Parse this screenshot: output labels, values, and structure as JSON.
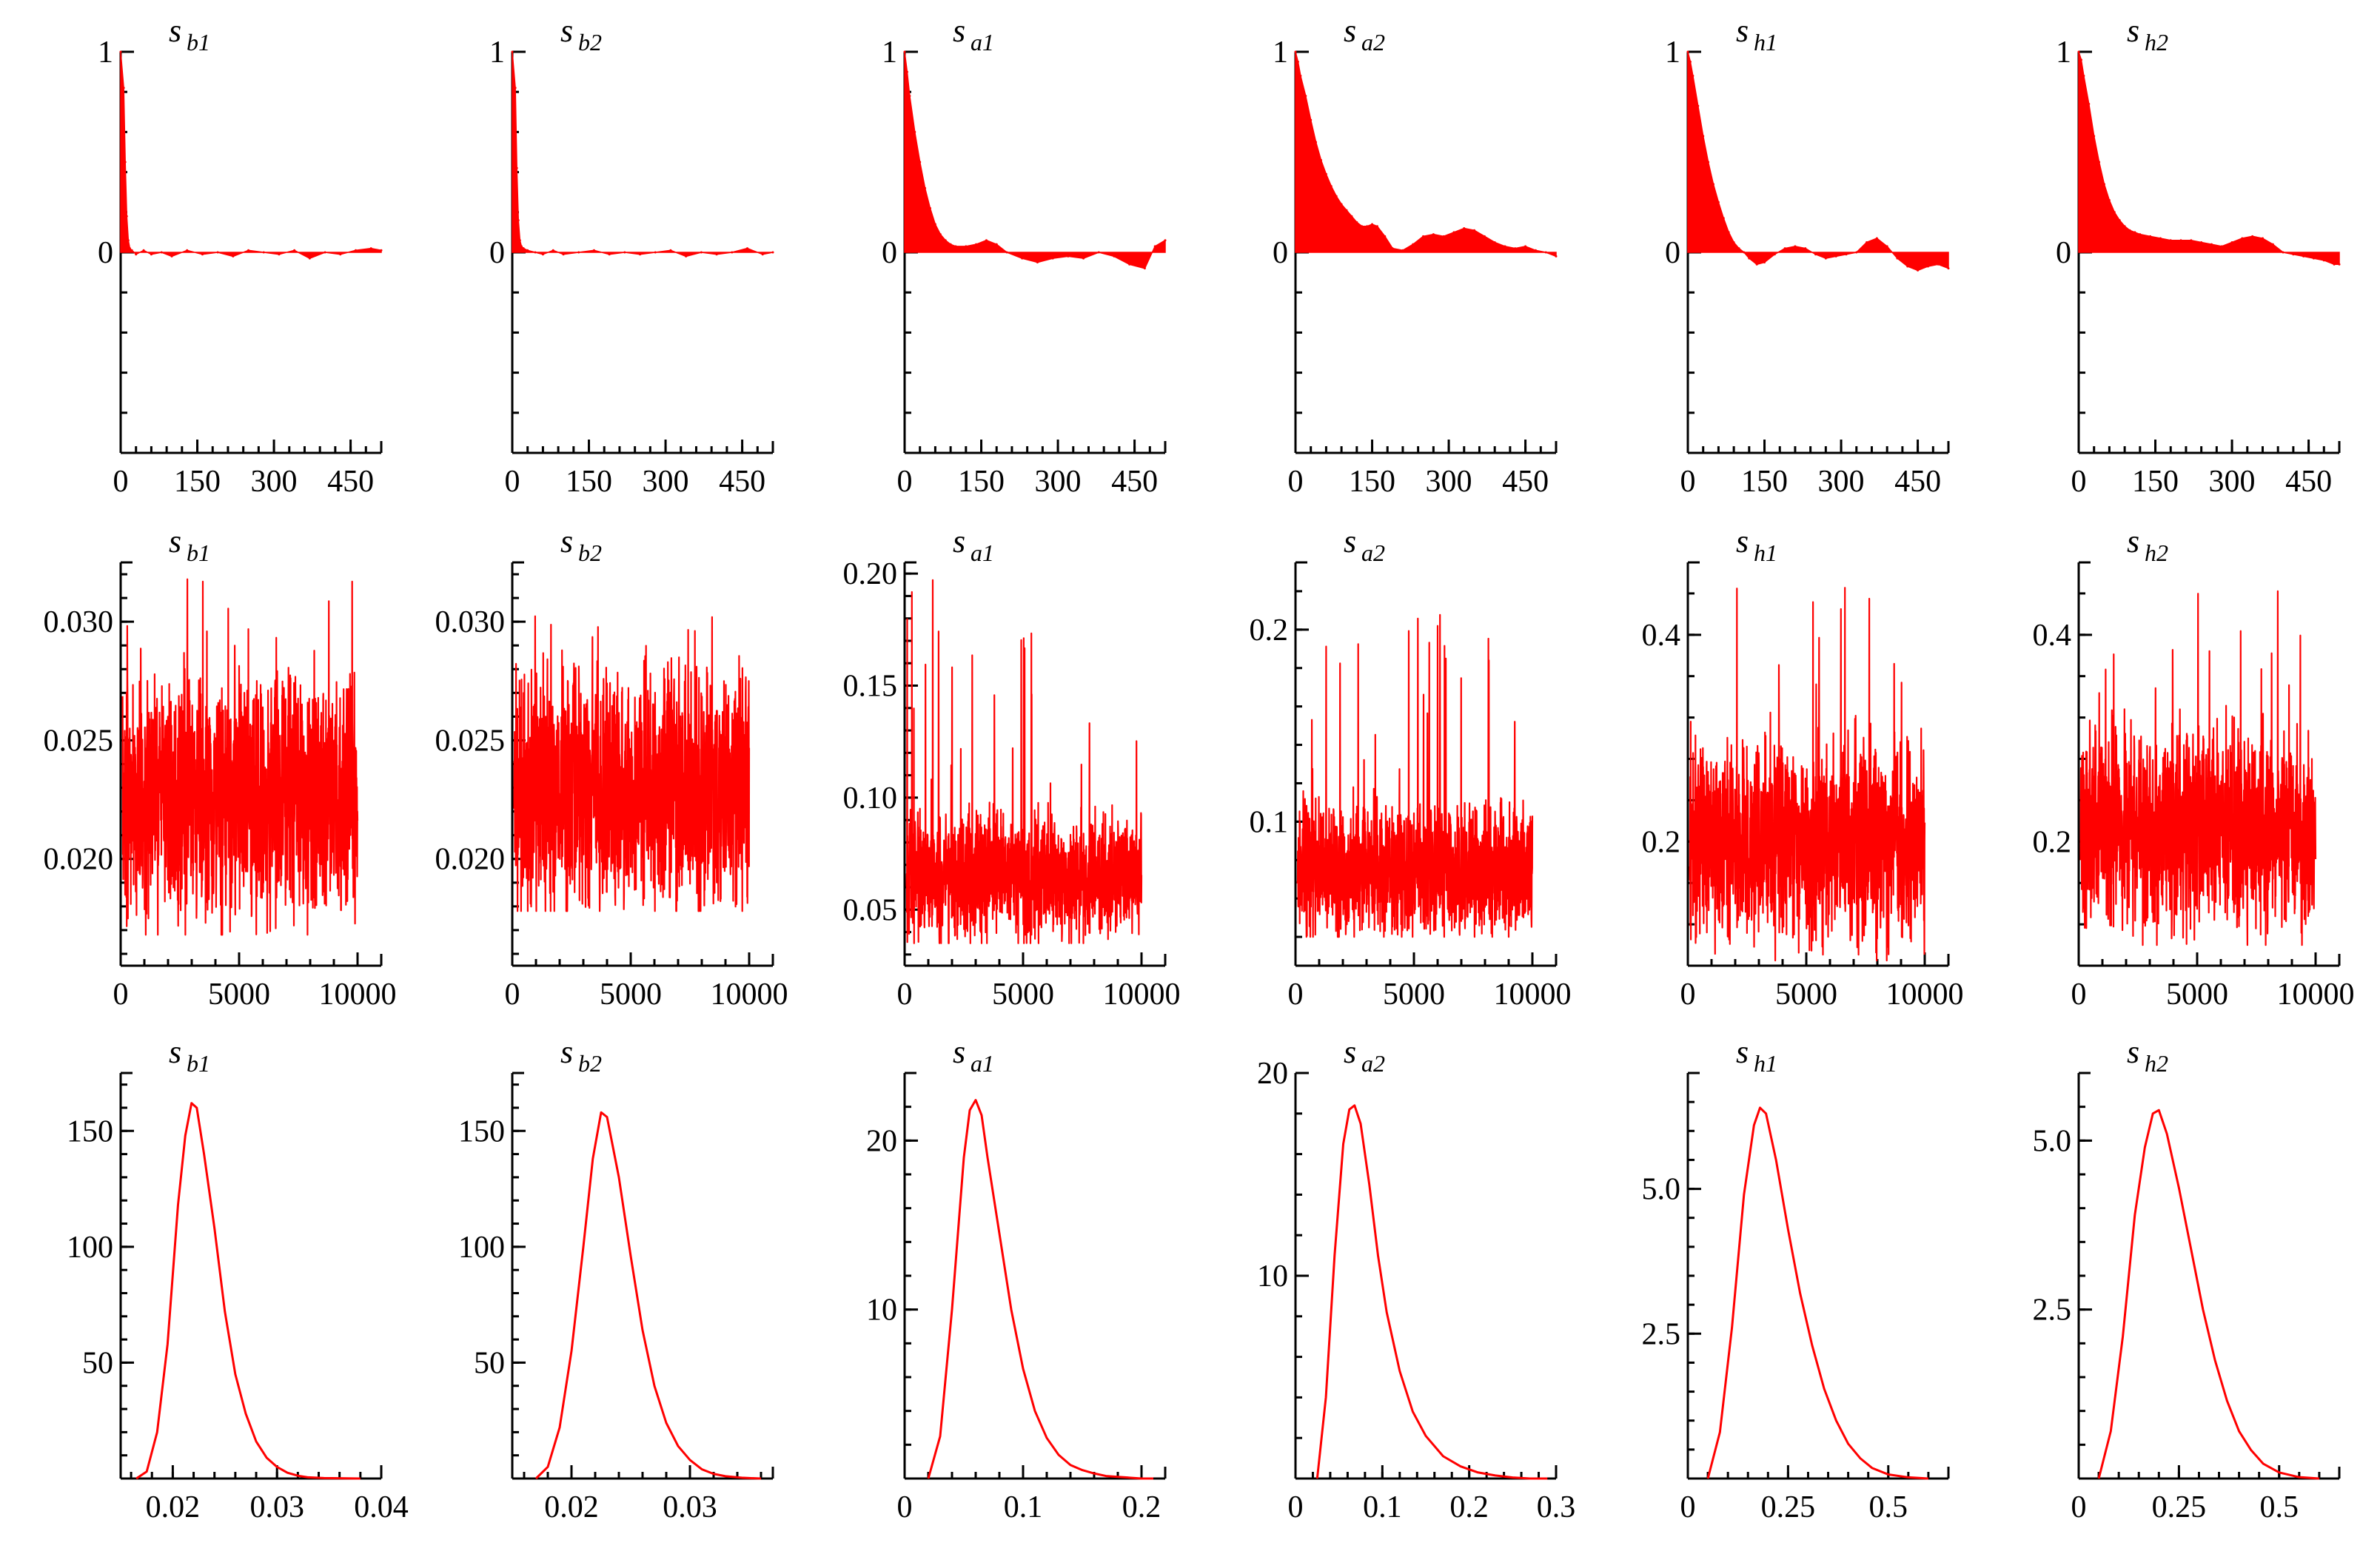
{
  "colors": {
    "series": "#ff0000",
    "axis": "#000000",
    "background": "#ffffff"
  },
  "chart_data": [
    {
      "type": "area",
      "row_kind": "autocorrelation",
      "title": "s",
      "subscript": "b1",
      "xlim": [
        0,
        510
      ],
      "ylim": [
        -1,
        1
      ],
      "xticks": [
        "0",
        "150",
        "300",
        "450"
      ],
      "yticks": [
        "0",
        "1"
      ],
      "x": [
        0,
        6,
        9,
        12,
        15,
        18,
        22,
        30,
        45,
        60,
        80,
        100,
        130,
        160,
        190,
        220,
        250,
        280,
        310,
        340,
        370,
        400,
        430,
        460,
        490,
        510
      ],
      "y": [
        1,
        0.82,
        0.45,
        0.18,
        0.06,
        0.02,
        0.01,
        -0.01,
        0.01,
        -0.01,
        0.0,
        -0.02,
        0.01,
        -0.01,
        0.0,
        -0.02,
        0.01,
        0.0,
        -0.01,
        0.01,
        -0.03,
        0.0,
        -0.01,
        0.01,
        0.02,
        0.01
      ]
    },
    {
      "type": "area",
      "row_kind": "autocorrelation",
      "title": "s",
      "subscript": "b2",
      "xlim": [
        0,
        510
      ],
      "ylim": [
        -1,
        1
      ],
      "xticks": [
        "0",
        "150",
        "300",
        "450"
      ],
      "yticks": [
        "0",
        "1"
      ],
      "x": [
        0,
        6,
        9,
        12,
        15,
        18,
        22,
        30,
        45,
        60,
        80,
        100,
        130,
        160,
        190,
        220,
        250,
        280,
        310,
        340,
        370,
        400,
        430,
        460,
        490,
        510
      ],
      "y": [
        1,
        0.82,
        0.42,
        0.16,
        0.06,
        0.03,
        0.02,
        0.01,
        0.0,
        -0.01,
        0.01,
        -0.01,
        0.0,
        0.01,
        -0.01,
        0.0,
        -0.01,
        0.0,
        0.01,
        -0.02,
        0.0,
        -0.01,
        0.0,
        0.02,
        -0.01,
        0.0
      ]
    },
    {
      "type": "area",
      "row_kind": "autocorrelation",
      "title": "s",
      "subscript": "a1",
      "xlim": [
        0,
        510
      ],
      "ylim": [
        -1,
        1
      ],
      "xticks": [
        "0",
        "150",
        "300",
        "450"
      ],
      "yticks": [
        "0",
        "1"
      ],
      "x": [
        0,
        5,
        10,
        20,
        30,
        40,
        50,
        60,
        70,
        80,
        90,
        100,
        120,
        140,
        160,
        180,
        200,
        230,
        260,
        290,
        320,
        350,
        380,
        410,
        440,
        470,
        490,
        510
      ],
      "y": [
        1,
        0.9,
        0.78,
        0.6,
        0.45,
        0.32,
        0.22,
        0.14,
        0.09,
        0.06,
        0.04,
        0.03,
        0.03,
        0.04,
        0.06,
        0.04,
        0.0,
        -0.03,
        -0.05,
        -0.03,
        -0.02,
        -0.03,
        0.0,
        -0.02,
        -0.06,
        -0.08,
        0.03,
        0.06
      ]
    },
    {
      "type": "area",
      "row_kind": "autocorrelation",
      "title": "s",
      "subscript": "a2",
      "xlim": [
        0,
        510
      ],
      "ylim": [
        -1,
        1
      ],
      "xticks": [
        "0",
        "150",
        "300",
        "450"
      ],
      "yticks": [
        "0",
        "1"
      ],
      "x": [
        0,
        5,
        10,
        20,
        30,
        40,
        50,
        60,
        70,
        80,
        90,
        100,
        110,
        120,
        130,
        140,
        150,
        160,
        175,
        190,
        210,
        230,
        250,
        270,
        290,
        310,
        330,
        350,
        370,
        390,
        410,
        430,
        450,
        470,
        490,
        510
      ],
      "y": [
        1,
        0.95,
        0.88,
        0.78,
        0.66,
        0.55,
        0.46,
        0.39,
        0.33,
        0.28,
        0.24,
        0.21,
        0.18,
        0.15,
        0.13,
        0.13,
        0.14,
        0.13,
        0.08,
        0.02,
        0.01,
        0.04,
        0.08,
        0.09,
        0.08,
        0.1,
        0.12,
        0.11,
        0.08,
        0.05,
        0.03,
        0.02,
        0.03,
        0.01,
        0.0,
        -0.02
      ]
    },
    {
      "type": "area",
      "row_kind": "autocorrelation",
      "title": "s",
      "subscript": "h1",
      "xlim": [
        0,
        510
      ],
      "ylim": [
        -1,
        1
      ],
      "xticks": [
        "0",
        "150",
        "300",
        "450"
      ],
      "yticks": [
        "0",
        "1"
      ],
      "x": [
        0,
        5,
        10,
        20,
        30,
        40,
        50,
        60,
        70,
        80,
        90,
        100,
        110,
        120,
        135,
        150,
        170,
        190,
        210,
        230,
        250,
        270,
        290,
        310,
        330,
        350,
        370,
        390,
        410,
        430,
        450,
        470,
        490,
        510
      ],
      "y": [
        1,
        0.95,
        0.88,
        0.73,
        0.58,
        0.45,
        0.34,
        0.25,
        0.17,
        0.1,
        0.05,
        0.02,
        0.0,
        -0.03,
        -0.06,
        -0.05,
        -0.01,
        0.02,
        0.03,
        0.02,
        -0.01,
        -0.03,
        -0.02,
        -0.01,
        0.0,
        0.05,
        0.07,
        0.03,
        -0.03,
        -0.07,
        -0.09,
        -0.07,
        -0.06,
        -0.08
      ]
    },
    {
      "type": "area",
      "row_kind": "autocorrelation",
      "title": "s",
      "subscript": "h2",
      "xlim": [
        0,
        510
      ],
      "ylim": [
        -1,
        1
      ],
      "xticks": [
        "0",
        "150",
        "300",
        "450"
      ],
      "yticks": [
        "0",
        "1"
      ],
      "x": [
        0,
        5,
        10,
        20,
        30,
        40,
        50,
        60,
        70,
        80,
        90,
        100,
        110,
        120,
        140,
        160,
        180,
        200,
        220,
        240,
        260,
        280,
        300,
        320,
        340,
        360,
        380,
        400,
        420,
        440,
        460,
        480,
        500,
        510
      ],
      "y": [
        1,
        0.96,
        0.88,
        0.74,
        0.58,
        0.45,
        0.34,
        0.26,
        0.2,
        0.16,
        0.13,
        0.11,
        0.1,
        0.09,
        0.08,
        0.07,
        0.06,
        0.06,
        0.06,
        0.05,
        0.04,
        0.03,
        0.05,
        0.07,
        0.08,
        0.07,
        0.04,
        0.0,
        -0.01,
        -0.02,
        -0.03,
        -0.04,
        -0.06,
        -0.06
      ]
    },
    {
      "type": "line",
      "row_kind": "trace",
      "title": "s",
      "subscript": "b1",
      "xlim": [
        0,
        11000
      ],
      "ylim": [
        0.0155,
        0.0325
      ],
      "n_points": 10000,
      "xticks": [
        "0",
        "5000",
        "10000"
      ],
      "yticks": [
        "0.020",
        "0.025",
        "0.030"
      ],
      "center": 0.0225,
      "spread": 0.0024,
      "y_min": 0.0168,
      "y_max": 0.0319
    },
    {
      "type": "line",
      "row_kind": "trace",
      "title": "s",
      "subscript": "b2",
      "xlim": [
        0,
        11000
      ],
      "ylim": [
        0.0155,
        0.0325
      ],
      "n_points": 10000,
      "xticks": [
        "0",
        "5000",
        "10000"
      ],
      "yticks": [
        "0.020",
        "0.025",
        "0.030"
      ],
      "center": 0.0228,
      "spread": 0.0025,
      "y_min": 0.0178,
      "y_max": 0.0305
    },
    {
      "type": "line",
      "row_kind": "trace",
      "title": "s",
      "subscript": "a1",
      "xlim": [
        0,
        11000
      ],
      "ylim": [
        0.025,
        0.205
      ],
      "n_points": 10000,
      "xticks": [
        "0",
        "5000",
        "10000"
      ],
      "yticks": [
        "0.05",
        "0.10",
        "0.15",
        "0.20"
      ],
      "center": 0.065,
      "spread": 0.013,
      "y_min": 0.035,
      "y_max": 0.198
    },
    {
      "type": "line",
      "row_kind": "trace",
      "title": "s",
      "subscript": "a2",
      "xlim": [
        0,
        11000
      ],
      "ylim": [
        0.025,
        0.235
      ],
      "n_points": 10000,
      "xticks": [
        "0",
        "5000",
        "10000"
      ],
      "yticks": [
        "0.1",
        "0.2"
      ],
      "center": 0.075,
      "spread": 0.016,
      "y_min": 0.04,
      "y_max": 0.214
    },
    {
      "type": "line",
      "row_kind": "trace",
      "title": "s",
      "subscript": "h1",
      "xlim": [
        0,
        11000
      ],
      "ylim": [
        0.08,
        0.47
      ],
      "n_points": 10000,
      "xticks": [
        "0",
        "5000",
        "10000"
      ],
      "yticks": [
        "0.2",
        "0.4"
      ],
      "center": 0.2,
      "spread": 0.045,
      "y_min": 0.085,
      "y_max": 0.455
    },
    {
      "type": "line",
      "row_kind": "trace",
      "title": "s",
      "subscript": "h2",
      "xlim": [
        0,
        11000
      ],
      "ylim": [
        0.08,
        0.47
      ],
      "n_points": 10000,
      "xticks": [
        "0",
        "5000",
        "10000"
      ],
      "yticks": [
        "0.2",
        "0.4"
      ],
      "center": 0.21,
      "spread": 0.045,
      "y_min": 0.1,
      "y_max": 0.445
    },
    {
      "type": "line",
      "row_kind": "density",
      "title": "s",
      "subscript": "b1",
      "xlim": [
        0.015,
        0.04
      ],
      "ylim": [
        0,
        175
      ],
      "xticks": [
        "0.02",
        "0.03",
        "0.04"
      ],
      "yticks": [
        "50",
        "100",
        "150"
      ],
      "x": [
        0.0165,
        0.0175,
        0.0185,
        0.0195,
        0.0205,
        0.0212,
        0.0218,
        0.0223,
        0.023,
        0.024,
        0.025,
        0.026,
        0.027,
        0.028,
        0.029,
        0.03,
        0.031,
        0.032,
        0.033,
        0.0345,
        0.036,
        0.038
      ],
      "y": [
        0,
        3,
        20,
        58,
        118,
        148,
        162,
        160,
        140,
        108,
        72,
        45,
        28,
        16,
        9,
        5,
        2.5,
        1.2,
        0.5,
        0.2,
        0.1,
        0
      ]
    },
    {
      "type": "line",
      "row_kind": "density",
      "title": "s",
      "subscript": "b2",
      "xlim": [
        0.015,
        0.037
      ],
      "ylim": [
        0,
        175
      ],
      "xticks": [
        "0.02",
        "0.03"
      ],
      "yticks": [
        "50",
        "100",
        "150"
      ],
      "x": [
        0.017,
        0.018,
        0.019,
        0.02,
        0.021,
        0.0218,
        0.0225,
        0.023,
        0.024,
        0.025,
        0.026,
        0.027,
        0.028,
        0.029,
        0.03,
        0.031,
        0.032,
        0.033,
        0.0345,
        0.036
      ],
      "y": [
        0,
        5,
        22,
        55,
        100,
        138,
        158,
        156,
        130,
        96,
        64,
        40,
        24,
        14,
        8,
        4,
        2,
        1,
        0.3,
        0
      ]
    },
    {
      "type": "line",
      "row_kind": "density",
      "title": "s",
      "subscript": "a1",
      "xlim": [
        0,
        0.22
      ],
      "ylim": [
        0,
        24
      ],
      "xticks": [
        "0",
        "0.1",
        "0.2"
      ],
      "yticks": [
        "10",
        "20"
      ],
      "x": [
        0.02,
        0.03,
        0.04,
        0.05,
        0.055,
        0.06,
        0.065,
        0.07,
        0.08,
        0.09,
        0.1,
        0.11,
        0.12,
        0.13,
        0.14,
        0.15,
        0.16,
        0.17,
        0.18,
        0.2,
        0.21
      ],
      "y": [
        0,
        2.5,
        10,
        19,
        21.8,
        22.4,
        21.5,
        19,
        14.5,
        10,
        6.5,
        4,
        2.4,
        1.4,
        0.8,
        0.5,
        0.3,
        0.15,
        0.1,
        0,
        0
      ]
    },
    {
      "type": "line",
      "row_kind": "density",
      "title": "s",
      "subscript": "a2",
      "xlim": [
        0,
        0.3
      ],
      "ylim": [
        0,
        20
      ],
      "xticks": [
        "0",
        "0.1",
        "0.2",
        "0.3"
      ],
      "yticks": [
        "10",
        "20"
      ],
      "x": [
        0.025,
        0.035,
        0.045,
        0.055,
        0.062,
        0.068,
        0.075,
        0.085,
        0.095,
        0.105,
        0.12,
        0.135,
        0.15,
        0.17,
        0.19,
        0.21,
        0.23,
        0.25,
        0.27,
        0.29
      ],
      "y": [
        0,
        4,
        11,
        16.5,
        18.2,
        18.4,
        17.5,
        14.5,
        11,
        8.2,
        5.3,
        3.3,
        2.1,
        1.1,
        0.6,
        0.3,
        0.15,
        0.05,
        0,
        0
      ]
    },
    {
      "type": "line",
      "row_kind": "density",
      "title": "s",
      "subscript": "h1",
      "xlim": [
        0,
        0.65
      ],
      "ylim": [
        0,
        7
      ],
      "xticks": [
        "0",
        "0.25",
        "0.5"
      ],
      "yticks": [
        "2.5",
        "5.0"
      ],
      "x": [
        0.05,
        0.08,
        0.11,
        0.14,
        0.165,
        0.18,
        0.195,
        0.22,
        0.25,
        0.28,
        0.31,
        0.34,
        0.37,
        0.4,
        0.43,
        0.46,
        0.5,
        0.55,
        0.6
      ],
      "y": [
        0,
        0.8,
        2.6,
        4.9,
        6.1,
        6.4,
        6.3,
        5.5,
        4.3,
        3.2,
        2.3,
        1.55,
        1.0,
        0.6,
        0.35,
        0.18,
        0.07,
        0.02,
        0
      ]
    },
    {
      "type": "line",
      "row_kind": "density",
      "title": "s",
      "subscript": "h2",
      "xlim": [
        0,
        0.65
      ],
      "ylim": [
        0,
        6
      ],
      "xticks": [
        "0",
        "0.25",
        "0.5"
      ],
      "yticks": [
        "2.5",
        "5.0"
      ],
      "x": [
        0.05,
        0.08,
        0.11,
        0.14,
        0.165,
        0.185,
        0.2,
        0.22,
        0.25,
        0.28,
        0.31,
        0.34,
        0.37,
        0.4,
        0.43,
        0.46,
        0.5,
        0.55,
        0.6
      ],
      "y": [
        0,
        0.7,
        2.1,
        3.9,
        4.9,
        5.4,
        5.45,
        5.1,
        4.3,
        3.4,
        2.5,
        1.75,
        1.15,
        0.7,
        0.42,
        0.22,
        0.09,
        0.02,
        0
      ]
    }
  ]
}
